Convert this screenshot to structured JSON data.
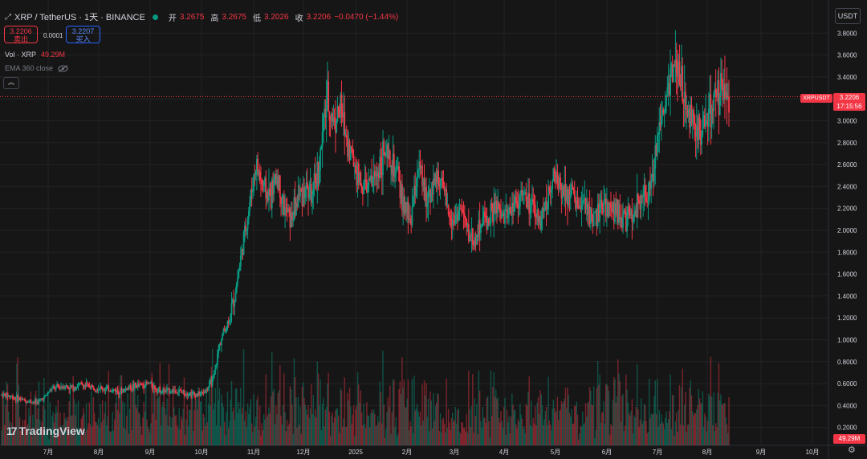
{
  "header": {
    "symbol_title": "XRP / TetherUS · 1天 · BINANCE",
    "open_label": "开",
    "open_value": "3.2675",
    "high_label": "高",
    "high_value": "3.2675",
    "low_label": "低",
    "low_value": "3.2026",
    "close_label": "收",
    "close_value": "3.2206",
    "change_value": "−0.0470 (−1.44%)"
  },
  "trade": {
    "sell_price": "3.2206",
    "sell_label": "卖出",
    "spread": "0.0001",
    "buy_price": "3.2207",
    "buy_label": "买入"
  },
  "indicators": {
    "vol_label": "Vol · XRP",
    "vol_value": "49.29M",
    "ema_label": "EMA 360 close"
  },
  "currency_button": "USDT",
  "price_tag": {
    "symbol": "XRPUSDT",
    "price": "3.2206",
    "countdown": "17:15:56"
  },
  "volume_tag": "49.29M",
  "logo_text": "TradingView",
  "colors": {
    "up": "#089981",
    "down": "#f23645",
    "background": "#161616",
    "grid": "#232323"
  },
  "chart_data": {
    "type": "candlestick",
    "y_axis_ticks": [
      "3.8000",
      "3.6000",
      "3.4000",
      "3.2000",
      "3.0000",
      "2.8000",
      "2.6000",
      "2.4000",
      "2.2000",
      "2.0000",
      "1.8000",
      "1.6000",
      "1.4000",
      "1.2000",
      "1.0000",
      "0.8000",
      "0.6000",
      "0.4000",
      "0.2000"
    ],
    "x_axis_ticks": [
      "7月",
      "8月",
      "9月",
      "10月",
      "11月",
      "12月",
      "2025",
      "2月",
      "3月",
      "4月",
      "5月",
      "6月",
      "7月",
      "8月",
      "9月",
      "10月"
    ],
    "ylim": [
      0.0,
      3.9
    ],
    "last_price": 3.2206,
    "price_path_weekly": [
      0.5,
      0.49,
      0.47,
      0.45,
      0.44,
      0.43,
      0.47,
      0.55,
      0.57,
      0.58,
      0.56,
      0.59,
      0.58,
      0.57,
      0.56,
      0.55,
      0.54,
      0.53,
      0.57,
      0.58,
      0.59,
      0.6,
      0.55,
      0.53,
      0.54,
      0.53,
      0.52,
      0.51,
      0.5,
      0.54,
      0.65,
      1.0,
      1.15,
      1.4,
      1.8,
      2.2,
      2.6,
      2.4,
      2.3,
      2.5,
      2.2,
      2.1,
      2.3,
      2.4,
      2.3,
      2.6,
      3.2,
      3.0,
      3.1,
      2.8,
      2.6,
      2.4,
      2.4,
      2.5,
      2.7,
      2.6,
      2.5,
      2.2,
      2.1,
      2.6,
      2.3,
      2.4,
      2.5,
      2.2,
      2.1,
      2.2,
      2.0,
      1.9,
      2.1,
      2.1,
      2.2,
      2.1,
      2.2,
      2.3,
      2.3,
      2.2,
      2.1,
      2.2,
      2.5,
      2.4,
      2.4,
      2.3,
      2.2,
      2.2,
      2.1,
      2.2,
      2.2,
      2.2,
      2.1,
      2.1,
      2.2,
      2.3,
      2.4,
      2.9,
      3.2,
      3.5,
      3.4,
      3.1,
      3.0,
      2.9,
      3.0,
      3.2,
      3.3,
      3.2
    ]
  }
}
